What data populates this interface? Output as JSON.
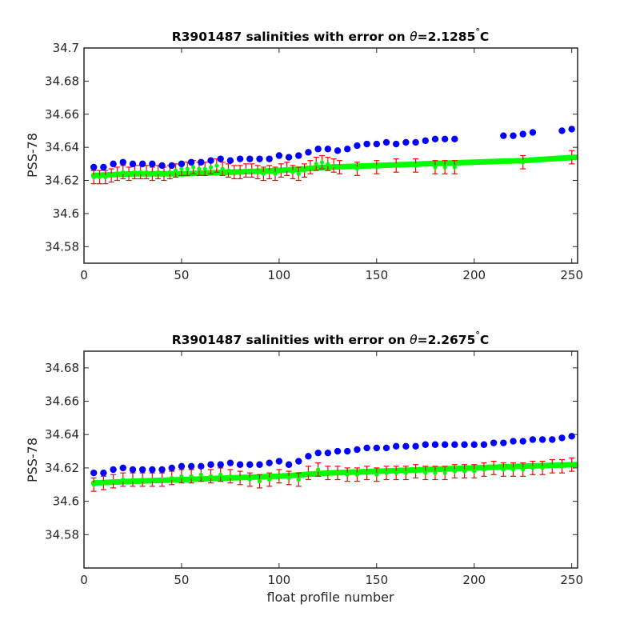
{
  "colors": {
    "float_calibrated": "#0000ff",
    "mapped_error": "#ff0000",
    "mapped": "#00ff00",
    "axes": "#262626"
  },
  "chart_data": [
    {
      "type": "scatter",
      "title_prefix": "R3901487 salinities with error on ",
      "title_symbol": "θ",
      "title_suffix": "=2.1285",
      "title_degree": "°",
      "title_unit": "C",
      "xlabel": "",
      "ylabel": "PSS-78",
      "xlim": [
        0,
        253
      ],
      "ylim": [
        34.57,
        34.7
      ],
      "xticks": [
        0,
        50,
        100,
        150,
        200,
        250
      ],
      "xtick_labels": [
        "0",
        "50",
        "100",
        "150",
        "200",
        "250"
      ],
      "yticks": [
        34.58,
        34.6,
        34.62,
        34.64,
        34.66,
        34.68,
        34.7
      ],
      "ytick_labels": [
        "34.58",
        "34.6",
        "34.62",
        "34.64",
        "34.66",
        "34.68",
        "34.7"
      ],
      "series": [
        {
          "kind": "points",
          "color": "blue",
          "x": [
            5,
            10,
            15,
            20,
            25,
            30,
            35,
            40,
            45,
            50,
            55,
            60,
            65,
            70,
            75,
            80,
            85,
            90,
            95,
            100,
            105,
            110,
            115,
            120,
            125,
            130,
            135,
            140,
            145,
            150,
            155,
            160,
            165,
            170,
            175,
            180,
            185,
            190,
            215,
            220,
            225,
            230,
            245,
            250
          ],
          "y": [
            34.628,
            34.628,
            34.63,
            34.631,
            34.63,
            34.63,
            34.63,
            34.629,
            34.629,
            34.63,
            34.631,
            34.631,
            34.632,
            34.633,
            34.632,
            34.633,
            34.633,
            34.633,
            34.633,
            34.635,
            34.634,
            34.635,
            34.637,
            34.639,
            34.639,
            34.638,
            34.639,
            34.641,
            34.642,
            34.642,
            34.643,
            34.642,
            34.643,
            34.643,
            34.644,
            34.645,
            34.645,
            34.645,
            34.647,
            34.647,
            34.648,
            34.649,
            34.65,
            34.651
          ]
        },
        {
          "kind": "band",
          "color": "green",
          "x": [
            5,
            25,
            50,
            75,
            100,
            125,
            150,
            175,
            200,
            225,
            252
          ],
          "y": [
            34.623,
            34.624,
            34.624,
            34.625,
            34.626,
            34.628,
            34.629,
            34.63,
            34.631,
            34.632,
            34.634
          ]
        },
        {
          "kind": "errorbars",
          "color": "red",
          "x": [
            5,
            8,
            11,
            14,
            17,
            20,
            23,
            26,
            29,
            32,
            35,
            38,
            41,
            44,
            47,
            50,
            53,
            56,
            59,
            62,
            65,
            68,
            71,
            74,
            77,
            80,
            83,
            86,
            89,
            92,
            95,
            98,
            101,
            104,
            107,
            110,
            113,
            116,
            119,
            122,
            125,
            128,
            131,
            140,
            150,
            160,
            170,
            180,
            185,
            190,
            225,
            250
          ],
          "y": [
            34.622,
            34.622,
            34.622,
            34.623,
            34.624,
            34.625,
            34.624,
            34.625,
            34.625,
            34.625,
            34.624,
            34.625,
            34.624,
            34.625,
            34.626,
            34.627,
            34.627,
            34.628,
            34.627,
            34.627,
            34.628,
            34.629,
            34.627,
            34.626,
            34.625,
            34.625,
            34.626,
            34.626,
            34.625,
            34.624,
            34.625,
            34.624,
            34.626,
            34.627,
            34.625,
            34.624,
            34.626,
            34.628,
            34.63,
            34.631,
            34.63,
            34.629,
            34.628,
            34.627,
            34.628,
            34.629,
            34.629,
            34.628,
            34.628,
            34.628,
            34.631,
            34.634
          ],
          "err": 0.004
        }
      ]
    },
    {
      "type": "scatter",
      "title_prefix": "R3901487 salinities with error on ",
      "title_symbol": "θ",
      "title_suffix": "=2.2675",
      "title_degree": "°",
      "title_unit": "C",
      "xlabel": "float profile number",
      "ylabel": "PSS-78",
      "xlim": [
        0,
        253
      ],
      "ylim": [
        34.56,
        34.69
      ],
      "xticks": [
        0,
        50,
        100,
        150,
        200,
        250
      ],
      "xtick_labels": [
        "0",
        "50",
        "100",
        "150",
        "200",
        "250"
      ],
      "yticks": [
        34.58,
        34.6,
        34.62,
        34.64,
        34.66,
        34.68
      ],
      "ytick_labels": [
        "34.58",
        "34.6",
        "34.62",
        "34.64",
        "34.66",
        "34.68"
      ],
      "series": [
        {
          "kind": "points",
          "color": "blue",
          "x": [
            5,
            10,
            15,
            20,
            25,
            30,
            35,
            40,
            45,
            50,
            55,
            60,
            65,
            70,
            75,
            80,
            85,
            90,
            95,
            100,
            105,
            110,
            115,
            120,
            125,
            130,
            135,
            140,
            145,
            150,
            155,
            160,
            165,
            170,
            175,
            180,
            185,
            190,
            195,
            200,
            205,
            210,
            215,
            220,
            225,
            230,
            235,
            240,
            245,
            250
          ],
          "y": [
            34.617,
            34.617,
            34.619,
            34.62,
            34.619,
            34.619,
            34.619,
            34.619,
            34.62,
            34.621,
            34.621,
            34.621,
            34.622,
            34.622,
            34.623,
            34.622,
            34.622,
            34.622,
            34.623,
            34.624,
            34.622,
            34.624,
            34.627,
            34.629,
            34.629,
            34.63,
            34.63,
            34.631,
            34.632,
            34.632,
            34.632,
            34.633,
            34.633,
            34.633,
            34.634,
            34.634,
            34.634,
            34.634,
            34.634,
            34.634,
            34.634,
            34.635,
            34.635,
            34.636,
            34.636,
            34.637,
            34.637,
            34.637,
            34.638,
            34.639
          ]
        },
        {
          "kind": "band",
          "color": "green",
          "x": [
            5,
            25,
            50,
            75,
            100,
            125,
            150,
            175,
            200,
            225,
            252
          ],
          "y": [
            34.611,
            34.612,
            34.613,
            34.614,
            34.615,
            34.617,
            34.618,
            34.619,
            34.62,
            34.621,
            34.622
          ]
        },
        {
          "kind": "errorbars",
          "color": "red",
          "x": [
            5,
            10,
            15,
            20,
            25,
            30,
            35,
            40,
            45,
            50,
            55,
            60,
            65,
            70,
            75,
            80,
            85,
            90,
            95,
            100,
            105,
            110,
            115,
            120,
            125,
            130,
            135,
            140,
            145,
            150,
            155,
            160,
            165,
            170,
            175,
            180,
            185,
            190,
            195,
            200,
            205,
            210,
            215,
            220,
            225,
            230,
            235,
            240,
            245,
            250
          ],
          "y": [
            34.61,
            34.611,
            34.612,
            34.613,
            34.613,
            34.613,
            34.613,
            34.613,
            34.614,
            34.615,
            34.615,
            34.616,
            34.615,
            34.616,
            34.615,
            34.614,
            34.613,
            34.612,
            34.613,
            34.615,
            34.614,
            34.613,
            34.617,
            34.619,
            34.617,
            34.617,
            34.616,
            34.616,
            34.617,
            34.616,
            34.617,
            34.617,
            34.617,
            34.618,
            34.617,
            34.617,
            34.617,
            34.618,
            34.618,
            34.618,
            34.619,
            34.62,
            34.619,
            34.619,
            34.619,
            34.62,
            34.62,
            34.621,
            34.621,
            34.622
          ],
          "err": 0.004
        }
      ]
    }
  ]
}
